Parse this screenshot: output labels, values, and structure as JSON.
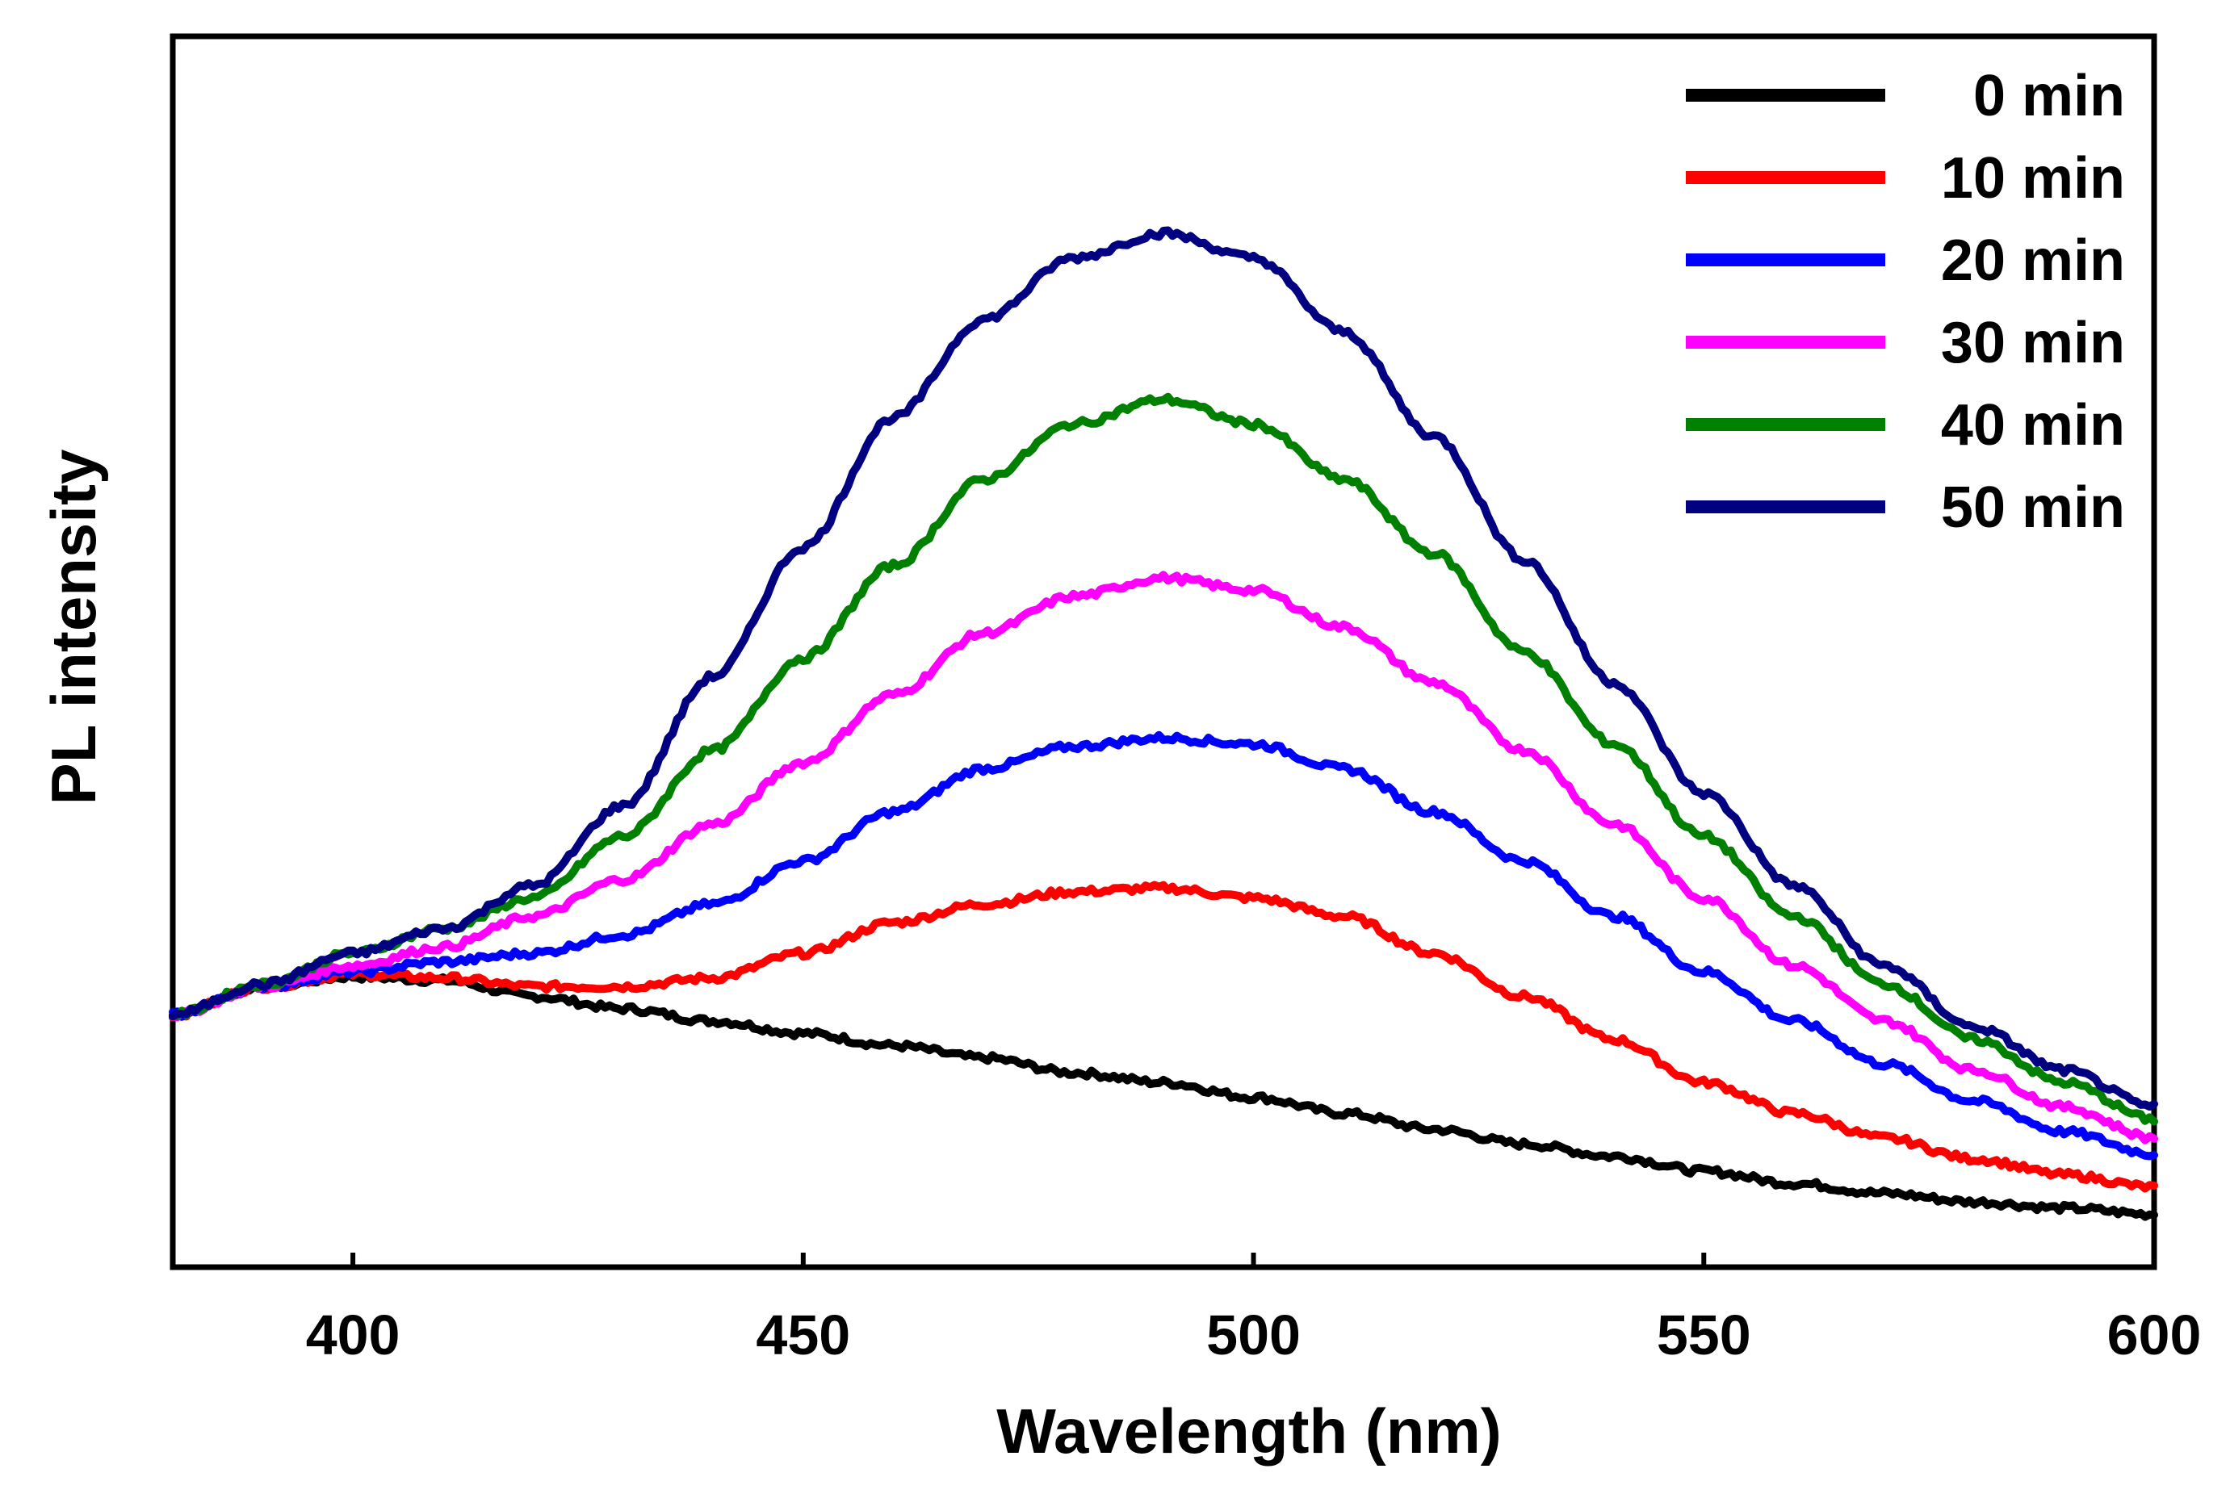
{
  "chart_data": {
    "type": "line",
    "title": "",
    "xlabel": "Wavelength (nm)",
    "ylabel": "PL intensity",
    "xlim": [
      380,
      600
    ],
    "ylim": [
      0,
      100
    ],
    "x_ticks": [
      400,
      450,
      500,
      550,
      600
    ],
    "x_tick_labels": [
      "400",
      "450",
      "500",
      "550",
      "600"
    ],
    "y_ticks_shown": false,
    "grid": false,
    "legend_position": "top-right",
    "series": [
      {
        "name": "0 min",
        "color": "#000000",
        "x": [
          380,
          390,
          400,
          410,
          420,
          430,
          440,
          450,
          460,
          470,
          480,
          490,
          500,
          510,
          520,
          530,
          540,
          550,
          560,
          570,
          580,
          590,
          600
        ],
        "y": [
          20.5,
          22.8,
          23.6,
          23.3,
          22.0,
          21.0,
          20.0,
          19.0,
          18.0,
          17.0,
          15.8,
          15.0,
          13.8,
          12.5,
          11.2,
          10.0,
          9.0,
          7.8,
          6.8,
          6.0,
          5.3,
          4.8,
          4.3
        ]
      },
      {
        "name": "10 min",
        "color": "#ff0000",
        "x": [
          380,
          390,
          400,
          410,
          420,
          430,
          440,
          450,
          460,
          470,
          480,
          490,
          500,
          510,
          520,
          530,
          540,
          550,
          560,
          570,
          580,
          590,
          600
        ],
        "y": [
          20.5,
          22.8,
          23.8,
          23.5,
          22.8,
          22.8,
          23.5,
          25.5,
          28.0,
          29.5,
          30.5,
          30.8,
          30.0,
          28.5,
          25.5,
          22.0,
          18.5,
          15.0,
          12.5,
          10.5,
          8.8,
          7.5,
          6.5
        ]
      },
      {
        "name": "20 min",
        "color": "#0000ff",
        "x": [
          380,
          390,
          400,
          410,
          420,
          430,
          440,
          450,
          460,
          470,
          480,
          490,
          500,
          510,
          520,
          530,
          540,
          550,
          560,
          570,
          580,
          590,
          600
        ],
        "y": [
          20.5,
          22.8,
          24.0,
          24.8,
          25.5,
          27.0,
          29.5,
          33.0,
          37.0,
          40.5,
          42.3,
          43.0,
          42.5,
          40.5,
          37.0,
          33.0,
          28.5,
          24.0,
          20.0,
          16.5,
          13.5,
          11.0,
          9.2
        ]
      },
      {
        "name": "30 min",
        "color": "#ff00ff",
        "x": [
          380,
          390,
          400,
          410,
          420,
          430,
          440,
          450,
          460,
          470,
          480,
          490,
          500,
          510,
          520,
          530,
          540,
          550,
          560,
          570,
          580,
          590,
          600
        ],
        "y": [
          20.5,
          22.8,
          24.5,
          26.0,
          28.5,
          31.5,
          36.0,
          41.0,
          46.5,
          51.5,
          54.5,
          56.0,
          55.0,
          52.0,
          47.5,
          42.0,
          36.0,
          30.0,
          24.5,
          20.0,
          16.0,
          13.0,
          10.5
        ]
      },
      {
        "name": "40 min",
        "color": "#008000",
        "x": [
          380,
          390,
          400,
          410,
          420,
          430,
          440,
          450,
          460,
          470,
          480,
          490,
          500,
          510,
          520,
          530,
          540,
          550,
          560,
          570,
          580,
          590,
          600
        ],
        "y": [
          20.5,
          23.0,
          25.5,
          27.5,
          30.0,
          35.0,
          42.0,
          49.5,
          57.0,
          64.0,
          68.5,
          70.5,
          68.5,
          64.0,
          58.0,
          50.0,
          42.5,
          35.0,
          28.5,
          23.0,
          18.5,
          15.0,
          12.0
        ]
      },
      {
        "name": "50 min",
        "color": "#000080",
        "x": [
          380,
          390,
          400,
          410,
          420,
          430,
          440,
          450,
          460,
          470,
          480,
          490,
          500,
          510,
          520,
          530,
          540,
          550,
          560,
          570,
          580,
          590,
          600
        ],
        "y": [
          20.5,
          23.0,
          25.5,
          27.5,
          31.0,
          37.5,
          48.0,
          58.5,
          69.0,
          77.0,
          82.0,
          84.0,
          82.0,
          76.0,
          67.5,
          57.5,
          47.5,
          38.5,
          31.0,
          24.5,
          19.5,
          16.0,
          13.0
        ]
      }
    ]
  }
}
